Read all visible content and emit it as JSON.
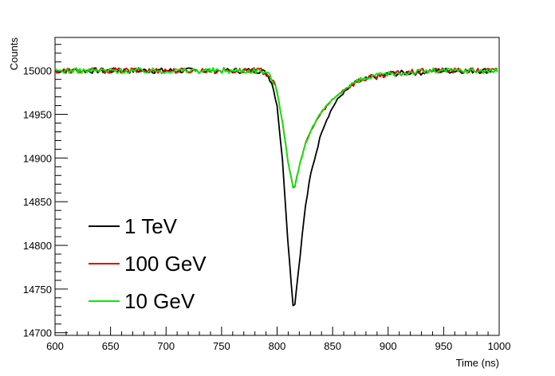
{
  "chart_data": {
    "type": "line",
    "title": "",
    "xlabel": "Time (ns)",
    "ylabel": "Counts",
    "xlim": [
      600,
      1000
    ],
    "ylim": [
      14697,
      15038
    ],
    "xticks": [
      600,
      650,
      700,
      750,
      800,
      850,
      900,
      950,
      1000
    ],
    "yticks": [
      14700,
      14750,
      14800,
      14850,
      14900,
      14950,
      15000
    ],
    "grid": false,
    "legend_position": "lower-left",
    "baseline": 15000,
    "series": [
      {
        "name": "1 TeV",
        "color": "#000000",
        "x": [
          600,
          700,
          785,
          790,
          795,
          800,
          805,
          810,
          815,
          820,
          825,
          830,
          835,
          840,
          845,
          850,
          855,
          860,
          865,
          870,
          875,
          880,
          890,
          900,
          910,
          920,
          930,
          940,
          1000
        ],
        "y": [
          15000,
          15000,
          15000,
          14997,
          14988,
          14960,
          14895,
          14800,
          14722,
          14780,
          14840,
          14880,
          14905,
          14930,
          14945,
          14958,
          14968,
          14975,
          14980,
          14985,
          14988,
          14990,
          14993,
          14996,
          14997,
          14998,
          14998,
          15000,
          15000
        ]
      },
      {
        "name": "100 GeV",
        "color": "#e00000",
        "x": [
          600,
          700,
          785,
          790,
          795,
          800,
          805,
          810,
          815,
          820,
          825,
          830,
          835,
          840,
          845,
          850,
          855,
          860,
          865,
          870,
          875,
          880,
          890,
          900,
          910,
          920,
          930,
          940,
          1000
        ],
        "y": [
          15000,
          15000,
          15000,
          14998,
          14992,
          14975,
          14940,
          14895,
          14862,
          14890,
          14915,
          14930,
          14942,
          14952,
          14960,
          14967,
          14973,
          14978,
          14982,
          14986,
          14989,
          14991,
          14994,
          14996,
          14997,
          14998,
          14999,
          15000,
          15000
        ]
      },
      {
        "name": "10 GeV",
        "color": "#00ee00",
        "x": [
          600,
          700,
          785,
          790,
          795,
          800,
          805,
          810,
          815,
          820,
          825,
          830,
          835,
          840,
          845,
          850,
          855,
          860,
          865,
          870,
          875,
          880,
          890,
          900,
          910,
          920,
          930,
          940,
          1000
        ],
        "y": [
          15000,
          15000,
          15000,
          14998,
          14992,
          14975,
          14940,
          14895,
          14862,
          14890,
          14915,
          14930,
          14942,
          14952,
          14960,
          14967,
          14973,
          14978,
          14982,
          14986,
          14989,
          14991,
          14994,
          14996,
          14997,
          14998,
          14999,
          15000,
          15000
        ]
      }
    ]
  }
}
